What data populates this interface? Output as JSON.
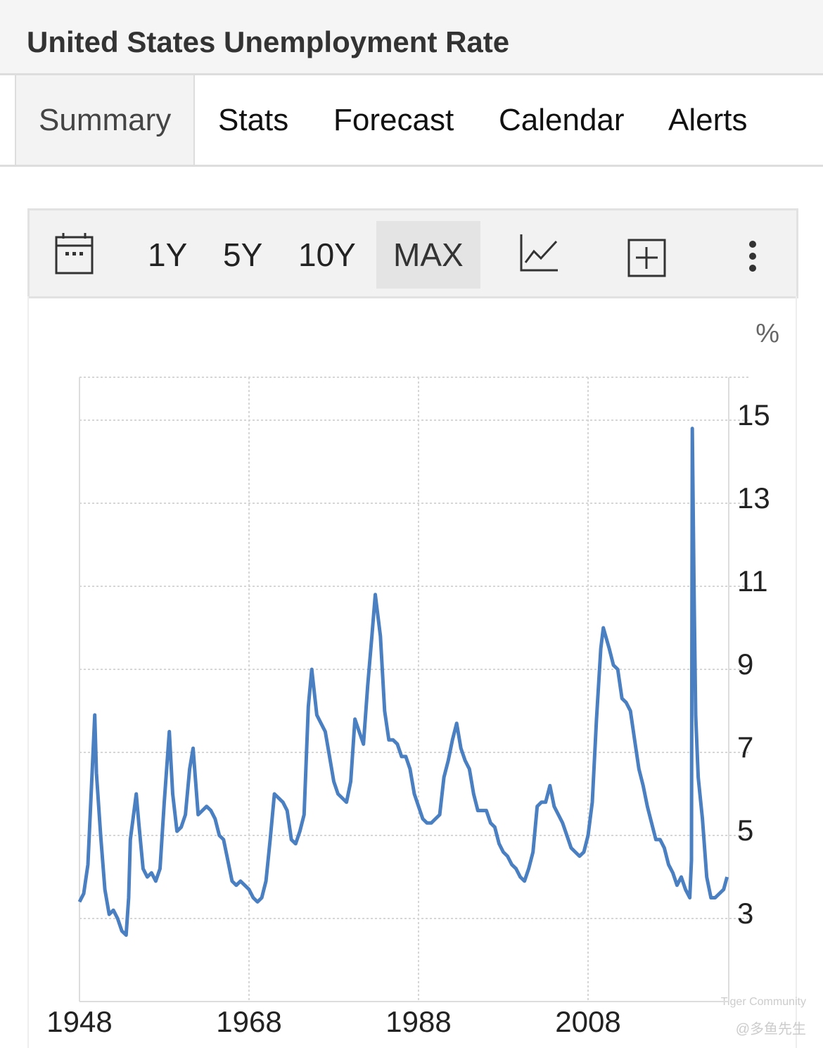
{
  "header": {
    "title": "United States Unemployment Rate"
  },
  "tabs": [
    "Summary",
    "Stats",
    "Forecast",
    "Calendar",
    "Alerts"
  ],
  "ranges": [
    "1Y",
    "5Y",
    "10Y",
    "MAX"
  ],
  "watermark": {
    "brand": "Tiger Community",
    "author": "@多鱼先生"
  },
  "chart_data": {
    "type": "line",
    "ylabel": "%",
    "color": "#4a7fc1",
    "x": [
      1948.0,
      1948.5,
      1949.0,
      1949.8,
      1950.0,
      1950.5,
      1951.0,
      1951.5,
      1952.0,
      1952.5,
      1953.0,
      1953.5,
      1953.8,
      1954.0,
      1954.7,
      1955.0,
      1955.5,
      1956.0,
      1956.5,
      1957.0,
      1957.5,
      1958.0,
      1958.6,
      1959.0,
      1959.5,
      1960.0,
      1960.5,
      1961.0,
      1961.4,
      1962.0,
      1962.5,
      1963.0,
      1963.5,
      1964.0,
      1964.5,
      1965.0,
      1965.5,
      1966.0,
      1966.5,
      1967.0,
      1967.5,
      1968.0,
      1968.5,
      1969.0,
      1969.5,
      1970.0,
      1970.5,
      1971.0,
      1971.5,
      1972.0,
      1972.5,
      1973.0,
      1973.5,
      1974.0,
      1974.5,
      1975.0,
      1975.4,
      1976.0,
      1976.5,
      1977.0,
      1977.5,
      1978.0,
      1978.5,
      1979.0,
      1979.5,
      1980.0,
      1980.5,
      1981.0,
      1981.5,
      1982.0,
      1982.5,
      1982.9,
      1983.5,
      1984.0,
      1984.5,
      1985.0,
      1985.5,
      1986.0,
      1986.5,
      1987.0,
      1987.5,
      1988.0,
      1988.5,
      1989.0,
      1989.5,
      1990.0,
      1990.5,
      1991.0,
      1991.5,
      1992.0,
      1992.5,
      1993.0,
      1993.5,
      1994.0,
      1994.5,
      1995.0,
      1995.5,
      1996.0,
      1996.5,
      1997.0,
      1997.5,
      1998.0,
      1998.5,
      1999.0,
      1999.5,
      2000.0,
      2000.5,
      2001.0,
      2001.5,
      2002.0,
      2002.5,
      2003.0,
      2003.5,
      2004.0,
      2004.5,
      2005.0,
      2005.5,
      2006.0,
      2006.5,
      2007.0,
      2007.5,
      2008.0,
      2008.5,
      2009.0,
      2009.5,
      2009.8,
      2010.5,
      2011.0,
      2011.5,
      2012.0,
      2012.5,
      2013.0,
      2013.5,
      2014.0,
      2014.5,
      2015.0,
      2015.5,
      2016.0,
      2016.5,
      2017.0,
      2017.5,
      2018.0,
      2018.5,
      2019.0,
      2019.5,
      2020.0,
      2020.2,
      2020.3,
      2020.5,
      2020.7,
      2021.0,
      2021.5,
      2022.0,
      2022.5,
      2023.0,
      2023.5,
      2024.0,
      2024.4
    ],
    "values": [
      3.4,
      3.6,
      4.3,
      7.9,
      6.5,
      5.0,
      3.7,
      3.1,
      3.2,
      3.0,
      2.7,
      2.6,
      3.5,
      4.9,
      6.0,
      5.3,
      4.2,
      4.0,
      4.1,
      3.9,
      4.2,
      5.8,
      7.5,
      6.0,
      5.1,
      5.2,
      5.5,
      6.6,
      7.1,
      5.5,
      5.6,
      5.7,
      5.6,
      5.4,
      5.0,
      4.9,
      4.4,
      3.9,
      3.8,
      3.9,
      3.8,
      3.7,
      3.5,
      3.4,
      3.5,
      3.9,
      4.9,
      6.0,
      5.9,
      5.8,
      5.6,
      4.9,
      4.8,
      5.1,
      5.5,
      8.1,
      9.0,
      7.9,
      7.7,
      7.5,
      6.9,
      6.3,
      6.0,
      5.9,
      5.8,
      6.3,
      7.8,
      7.5,
      7.2,
      8.6,
      9.8,
      10.8,
      9.8,
      8.0,
      7.3,
      7.3,
      7.2,
      6.9,
      6.9,
      6.6,
      6.0,
      5.7,
      5.4,
      5.3,
      5.3,
      5.4,
      5.5,
      6.4,
      6.8,
      7.3,
      7.7,
      7.1,
      6.8,
      6.6,
      6.0,
      5.6,
      5.6,
      5.6,
      5.3,
      5.2,
      4.8,
      4.6,
      4.5,
      4.3,
      4.2,
      4.0,
      3.9,
      4.2,
      4.6,
      5.7,
      5.8,
      5.8,
      6.2,
      5.7,
      5.5,
      5.3,
      5.0,
      4.7,
      4.6,
      4.5,
      4.6,
      5.0,
      5.8,
      7.8,
      9.5,
      10.0,
      9.5,
      9.1,
      9.0,
      8.3,
      8.2,
      8.0,
      7.3,
      6.6,
      6.2,
      5.7,
      5.3,
      4.9,
      4.9,
      4.7,
      4.3,
      4.1,
      3.8,
      4.0,
      3.7,
      3.5,
      4.4,
      14.8,
      11.0,
      7.9,
      6.4,
      5.4,
      4.0,
      3.5,
      3.5,
      3.6,
      3.7,
      4.0
    ],
    "xlim": [
      1948,
      2024.6
    ],
    "xticks": [
      1948,
      1968,
      1988,
      2008
    ],
    "ylim": [
      1,
      16
    ],
    "yticks": [
      3,
      5,
      7,
      9,
      11,
      13,
      15
    ],
    "grid": true
  }
}
